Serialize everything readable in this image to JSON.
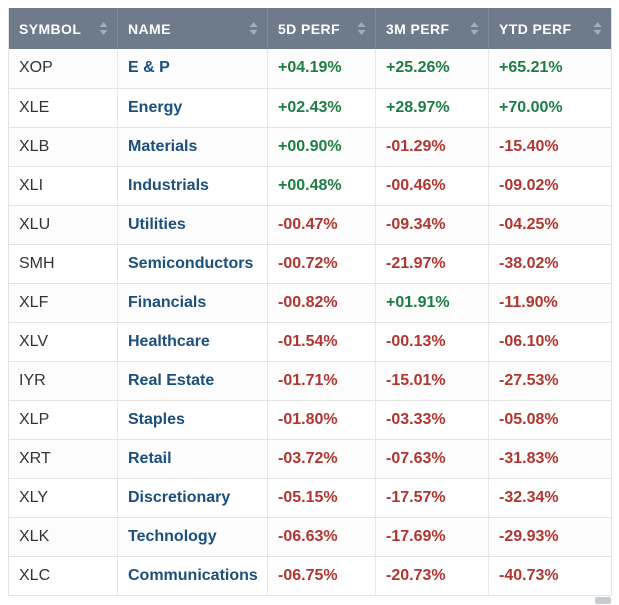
{
  "chart_data": {
    "type": "table",
    "columns": [
      {
        "key": "symbol",
        "label": "SYMBOL"
      },
      {
        "key": "name",
        "label": "NAME"
      },
      {
        "key": "perf_5d",
        "label": "5D PERF"
      },
      {
        "key": "perf_3m",
        "label": "3M PERF"
      },
      {
        "key": "perf_ytd",
        "label": "YTD PERF"
      }
    ],
    "rows": [
      {
        "symbol": "XOP",
        "name": "E & P",
        "perf_5d": "+04.19%",
        "perf_3m": "+25.26%",
        "perf_ytd": "+65.21%"
      },
      {
        "symbol": "XLE",
        "name": "Energy",
        "perf_5d": "+02.43%",
        "perf_3m": "+28.97%",
        "perf_ytd": "+70.00%"
      },
      {
        "symbol": "XLB",
        "name": "Materials",
        "perf_5d": "+00.90%",
        "perf_3m": "-01.29%",
        "perf_ytd": "-15.40%"
      },
      {
        "symbol": "XLI",
        "name": "Industrials",
        "perf_5d": "+00.48%",
        "perf_3m": "-00.46%",
        "perf_ytd": "-09.02%"
      },
      {
        "symbol": "XLU",
        "name": "Utilities",
        "perf_5d": "-00.47%",
        "perf_3m": "-09.34%",
        "perf_ytd": "-04.25%"
      },
      {
        "symbol": "SMH",
        "name": "Semiconductors",
        "perf_5d": "-00.72%",
        "perf_3m": "-21.97%",
        "perf_ytd": "-38.02%"
      },
      {
        "symbol": "XLF",
        "name": "Financials",
        "perf_5d": "-00.82%",
        "perf_3m": "+01.91%",
        "perf_ytd": "-11.90%"
      },
      {
        "symbol": "XLV",
        "name": "Healthcare",
        "perf_5d": "-01.54%",
        "perf_3m": "-00.13%",
        "perf_ytd": "-06.10%"
      },
      {
        "symbol": "IYR",
        "name": "Real Estate",
        "perf_5d": "-01.71%",
        "perf_3m": "-15.01%",
        "perf_ytd": "-27.53%"
      },
      {
        "symbol": "XLP",
        "name": "Staples",
        "perf_5d": "-01.80%",
        "perf_3m": "-03.33%",
        "perf_ytd": "-05.08%"
      },
      {
        "symbol": "XRT",
        "name": "Retail",
        "perf_5d": "-03.72%",
        "perf_3m": "-07.63%",
        "perf_ytd": "-31.83%"
      },
      {
        "symbol": "XLY",
        "name": "Discretionary",
        "perf_5d": "-05.15%",
        "perf_3m": "-17.57%",
        "perf_ytd": "-32.34%"
      },
      {
        "symbol": "XLK",
        "name": "Technology",
        "perf_5d": "-06.63%",
        "perf_3m": "-17.69%",
        "perf_ytd": "-29.93%"
      },
      {
        "symbol": "XLC",
        "name": "Communications",
        "perf_5d": "-06.75%",
        "perf_3m": "-20.73%",
        "perf_ytd": "-40.73%"
      }
    ],
    "icons": {
      "sort": "up-down-arrows"
    },
    "colors": {
      "header_bg": "#6d7b8a",
      "header_text": "#ffffff",
      "sort_icon": "#a3aeba",
      "positive": "#1d7d45",
      "negative": "#b03631",
      "name_link": "#1b4f7c",
      "symbol_text": "#333333"
    },
    "layout_hints": {
      "striped": true,
      "sortable_headers": true
    }
  }
}
